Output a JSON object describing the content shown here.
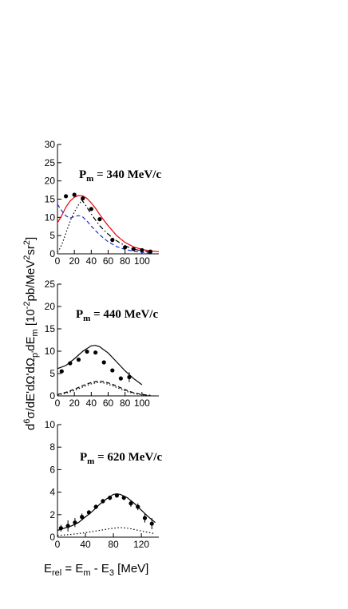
{
  "chart_data": [
    {
      "type": "scatter",
      "panel_label": {
        "main": "P",
        "sub": "m",
        "rest": " = 340 MeV/c"
      },
      "xlim": [
        0,
        120
      ],
      "ylim": [
        0,
        30
      ],
      "xticks": [
        0,
        20,
        40,
        60,
        80,
        100
      ],
      "yticks": [
        0,
        5,
        10,
        15,
        20,
        25,
        30
      ],
      "data": {
        "x": [
          10,
          20,
          30,
          40,
          50,
          65,
          80,
          90,
          100,
          110
        ],
        "y": [
          15.8,
          16.2,
          15.2,
          12.3,
          9.5,
          3.8,
          1.8,
          1.3,
          1.0,
          0.6
        ]
      },
      "curves": [
        {
          "style": "solid",
          "color": "#e8000b",
          "x": [
            0,
            5,
            10,
            15,
            20,
            25,
            30,
            35,
            40,
            45,
            50,
            55,
            60,
            70,
            80,
            90,
            100,
            110,
            120
          ],
          "y": [
            8.5,
            10.5,
            12.8,
            14.5,
            15.5,
            16.0,
            15.9,
            15.2,
            14.0,
            12.5,
            10.8,
            9.2,
            7.7,
            5.0,
            3.1,
            1.9,
            1.2,
            0.8,
            0.6
          ]
        },
        {
          "style": "dash",
          "color": "#1f2fd0",
          "x": [
            0,
            5,
            10,
            15,
            20,
            25,
            30,
            35,
            40,
            50,
            60,
            70,
            80,
            90,
            100,
            110
          ],
          "y": [
            13.6,
            11.8,
            10.4,
            9.8,
            10.2,
            10.5,
            10.1,
            9.0,
            7.6,
            5.2,
            3.3,
            2.0,
            1.2,
            0.7,
            0.4,
            0.2
          ]
        },
        {
          "style": "dashdot",
          "color": "#000000",
          "x": [
            28,
            33,
            38,
            44,
            50,
            58,
            66,
            74,
            82,
            90,
            100,
            110
          ],
          "y": [
            15.0,
            13.5,
            11.6,
            9.6,
            7.7,
            5.8,
            4.2,
            3.0,
            2.0,
            1.3,
            0.8,
            0.5
          ]
        },
        {
          "style": "dot",
          "color": "#000000",
          "x": [
            0,
            3,
            6,
            9,
            12,
            16,
            20,
            25,
            30
          ],
          "y": [
            0.5,
            1.5,
            3.0,
            5.0,
            7.0,
            9.5,
            11.5,
            13.5,
            15.0
          ]
        }
      ]
    },
    {
      "type": "scatter",
      "panel_label": {
        "main": "P",
        "sub": "m",
        "rest": " = 440 MeV/c"
      },
      "xlim": [
        0,
        120
      ],
      "ylim": [
        0,
        25
      ],
      "xticks": [
        0,
        20,
        40,
        60,
        80,
        100
      ],
      "yticks": [
        0,
        5,
        10,
        15,
        20,
        25
      ],
      "data": {
        "x": [
          5,
          15,
          25,
          35,
          45,
          55,
          65,
          75,
          85
        ],
        "y": [
          5.5,
          7.3,
          8.1,
          9.9,
          9.7,
          7.5,
          5.7,
          3.9,
          4.2
        ],
        "yerr": [
          0,
          0,
          0,
          0,
          0,
          0,
          0,
          0,
          1.1
        ]
      },
      "curves": [
        {
          "style": "solid",
          "color": "#000000",
          "x": [
            0,
            10,
            20,
            30,
            40,
            45,
            50,
            60,
            70,
            80,
            90,
            100
          ],
          "y": [
            6.1,
            6.8,
            8.3,
            10.0,
            11.2,
            11.3,
            11.0,
            9.6,
            7.6,
            5.6,
            3.9,
            2.5
          ]
        },
        {
          "style": "dash",
          "color": "#000000",
          "x": [
            0,
            10,
            20,
            30,
            40,
            48,
            55,
            65,
            75,
            85,
            95,
            105,
            110
          ],
          "y": [
            0.3,
            0.8,
            1.5,
            2.3,
            3.0,
            3.3,
            3.2,
            2.6,
            1.8,
            1.0,
            0.5,
            0.2,
            0.1
          ]
        },
        {
          "style": "dot",
          "color": "#000000",
          "x": [
            0,
            10,
            20,
            30,
            40,
            48,
            55,
            65,
            75,
            85,
            95,
            105,
            110
          ],
          "y": [
            0.2,
            0.6,
            1.2,
            2.0,
            2.7,
            3.0,
            2.9,
            2.3,
            1.5,
            0.8,
            0.4,
            0.15,
            0.1
          ]
        }
      ]
    },
    {
      "type": "scatter",
      "panel_label": {
        "main": "P",
        "sub": "m",
        "rest": " = 620 MeV/c"
      },
      "xlim": [
        0,
        145
      ],
      "ylim": [
        0,
        10
      ],
      "xticks": [
        0,
        40,
        80,
        120
      ],
      "yticks": [
        0,
        2,
        4,
        6,
        8,
        10
      ],
      "data": {
        "x": [
          5,
          15,
          25,
          35,
          45,
          55,
          65,
          75,
          85,
          95,
          105,
          115,
          125,
          135
        ],
        "y": [
          0.8,
          1.0,
          1.3,
          1.8,
          2.2,
          2.7,
          3.2,
          3.5,
          3.7,
          3.5,
          3.0,
          2.7,
          1.7,
          1.2
        ],
        "yerr": [
          0.3,
          0.5,
          0.4,
          0.3,
          0.2,
          0.2,
          0.2,
          0.2,
          0.2,
          0.2,
          0.3,
          0.3,
          0.4,
          0.5
        ]
      },
      "curves": [
        {
          "style": "solid",
          "color": "#000000",
          "x": [
            0,
            10,
            20,
            30,
            40,
            50,
            60,
            70,
            80,
            85,
            90,
            100,
            110,
            120,
            130,
            140
          ],
          "y": [
            0.6,
            0.8,
            1.0,
            1.3,
            1.8,
            2.3,
            2.9,
            3.4,
            3.8,
            3.85,
            3.8,
            3.5,
            3.0,
            2.4,
            1.8,
            1.3
          ]
        },
        {
          "style": "dot",
          "color": "#000000",
          "x": [
            0,
            20,
            40,
            60,
            80,
            90,
            100,
            120,
            140
          ],
          "y": [
            0.15,
            0.25,
            0.4,
            0.6,
            0.8,
            0.85,
            0.8,
            0.55,
            0.3
          ]
        }
      ]
    }
  ],
  "ylabel": {
    "parts": [
      {
        "t": "d",
        "s": "n"
      },
      {
        "t": "6",
        "s": "sup"
      },
      {
        "t": "σ/dE'dΩ'dΩ",
        "s": "n"
      },
      {
        "t": "p'",
        "s": "sub"
      },
      {
        "t": "dE",
        "s": "n"
      },
      {
        "t": "m",
        "s": "sub"
      },
      {
        "t": " [10",
        "s": "n"
      },
      {
        "t": "-2",
        "s": "sup"
      },
      {
        "t": "pb/MeV",
        "s": "n"
      },
      {
        "t": "2",
        "s": "sup"
      },
      {
        "t": "sr",
        "s": "n"
      },
      {
        "t": "2",
        "s": "sup"
      },
      {
        "t": "]",
        "s": "n"
      }
    ]
  },
  "xlabel": {
    "parts": [
      {
        "t": "E",
        "s": "n"
      },
      {
        "t": "rel",
        "s": "sub"
      },
      {
        "t": "  = E",
        "s": "n"
      },
      {
        "t": "m",
        "s": "sub"
      },
      {
        "t": " - E",
        "s": "n"
      },
      {
        "t": "3",
        "s": "sub"
      },
      {
        "t": " [MeV]",
        "s": "n"
      }
    ]
  }
}
